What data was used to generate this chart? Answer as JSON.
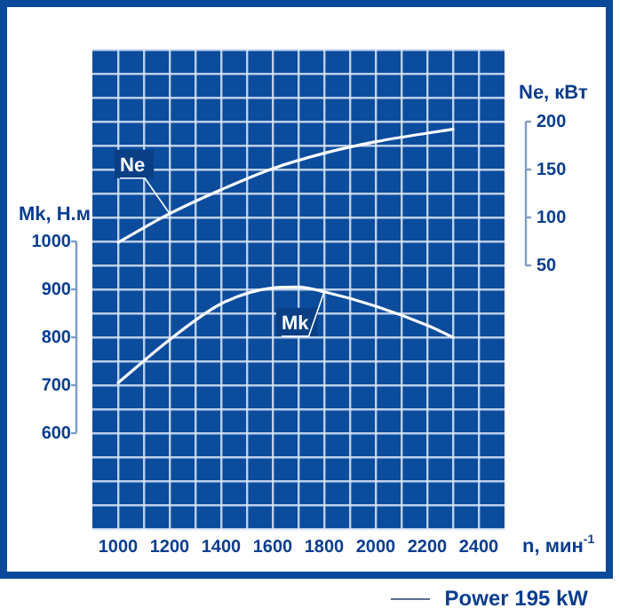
{
  "chart_data": {
    "type": "line",
    "xlabel": "n, мин$^{-1}$",
    "ylabel": "Mk, Н.м",
    "y2label": "Ne, кВт",
    "xlim": [
      900,
      2500
    ],
    "xticks": [
      1000,
      {
        "value": 1100,
        "label": null
      },
      1200,
      {
        "value": 1300,
        "label": null
      },
      1400,
      {
        "value": 1500,
        "label": null
      },
      1600,
      {
        "value": 1700,
        "label": null
      },
      1800,
      {
        "value": 1900,
        "label": null
      },
      2000,
      {
        "value": 2100,
        "label": null
      },
      2200,
      {
        "value": 2300,
        "label": null
      },
      2400
    ],
    "ylim": [
      400,
      1400
    ],
    "yticks": [
      {
        "value": 400,
        "label": null
      },
      {
        "value": 450,
        "label": null
      },
      {
        "value": 500,
        "label": null
      },
      {
        "value": 550,
        "label": null
      },
      600,
      {
        "value": 650,
        "label": null
      },
      700,
      {
        "value": 750,
        "label": null
      },
      800,
      {
        "value": 850,
        "label": null
      },
      900,
      {
        "value": 950,
        "label": null
      },
      1000,
      {
        "value": 1050,
        "label": null
      },
      {
        "value": 1100,
        "label": null
      },
      {
        "value": 1150,
        "label": null
      },
      {
        "value": 1200,
        "label": null
      },
      {
        "value": 1250,
        "label": null
      },
      {
        "value": 1300,
        "label": null
      },
      {
        "value": 1350,
        "label": null
      },
      {
        "value": 1400,
        "label": null
      }
    ],
    "y2lim": [
      -225,
      275
    ],
    "y2ticks": [
      50,
      100,
      150,
      200
    ],
    "grid": true,
    "legend": false,
    "marker": "none",
    "line_style": "solid",
    "series": [
      {
        "name": "Ne",
        "color": "#ffffff",
        "axis": "y2",
        "x": [
          1000,
          1200,
          1400,
          1600,
          1800,
          2000,
          2200,
          2300
        ],
        "values": [
          74,
          104,
          129,
          151,
          167,
          179,
          188,
          192
        ]
      },
      {
        "name": "Mk",
        "color": "#ffffff",
        "x": [
          1000,
          1200,
          1400,
          1600,
          1700,
          1800,
          2000,
          2200,
          2300
        ],
        "values": [
          705,
          795,
          870,
          903,
          905,
          895,
          865,
          825,
          800
        ]
      }
    ],
    "annotations": [
      "Power 195 kW"
    ]
  }
}
